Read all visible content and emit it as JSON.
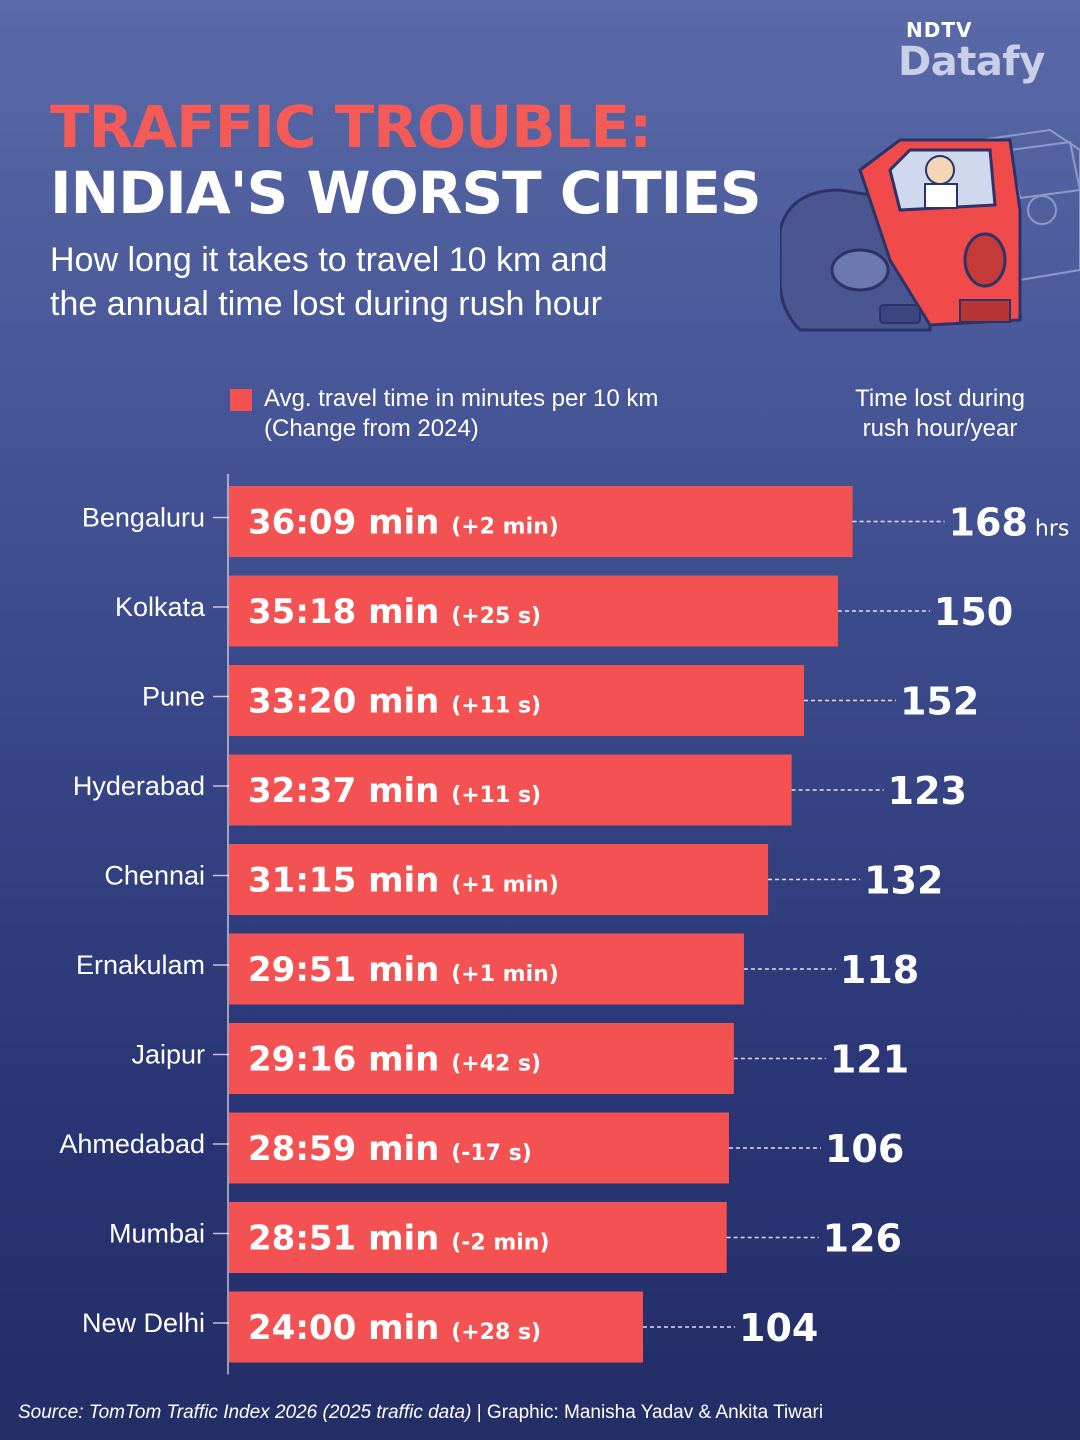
{
  "logo": {
    "top": "NDTV",
    "bottom": "Datafy"
  },
  "header": {
    "title_line1": "TRAFFIC TROUBLE:",
    "title_line2": "INDIA'S WORST CITIES",
    "subtitle_line1": "How long it takes to travel 10 km and",
    "subtitle_line2": "the annual time lost during rush hour"
  },
  "legend": {
    "bar_label_line1": "Avg. travel time in minutes per 10 km",
    "bar_label_line2": "(Change from 2024)",
    "right_label_line1": "Time lost during",
    "right_label_line2": "rush hour/year"
  },
  "colors": {
    "bar": "#f45252",
    "title_accent": "#f45b56",
    "background_top": "#5a6aa8",
    "background_bottom": "#232d66"
  },
  "chart_data": {
    "type": "bar",
    "orientation": "horizontal",
    "categories": [
      "Bengaluru",
      "Kolkata",
      "Pune",
      "Hyderabad",
      "Chennai",
      "Ernakulam",
      "Jaipur",
      "Ahmedabad",
      "Mumbai",
      "New Delhi"
    ],
    "series": [
      {
        "values_minutes": [
          36.15,
          35.3,
          33.333,
          32.617,
          31.25,
          29.85,
          29.267,
          28.983,
          28.85,
          24.0
        ],
        "value_labels": [
          "36:09 min",
          "35:18 min",
          "33:20 min",
          "32:37 min",
          "31:15 min",
          "29:51 min",
          "29:16 min",
          "28:59 min",
          "28:51 min",
          "24:00 min"
        ],
        "change_labels": [
          "(+2 min)",
          "(+25 s)",
          "(+11 s)",
          "(+11 s)",
          "(+1 min)",
          "(+1 min)",
          "(+42 s)",
          "(-17 s)",
          "(-2 min)",
          "(+28 s)"
        ]
      }
    ],
    "time_lost_hours": [
      168,
      150,
      152,
      123,
      132,
      118,
      121,
      106,
      126,
      104
    ],
    "time_lost_unit": "hrs"
  },
  "source": {
    "italic": "Source: TomTom Traffic Index 2026 (2025 traffic data)",
    "rest": " | Graphic: Manisha Yadav & Ankita Tiwari"
  }
}
